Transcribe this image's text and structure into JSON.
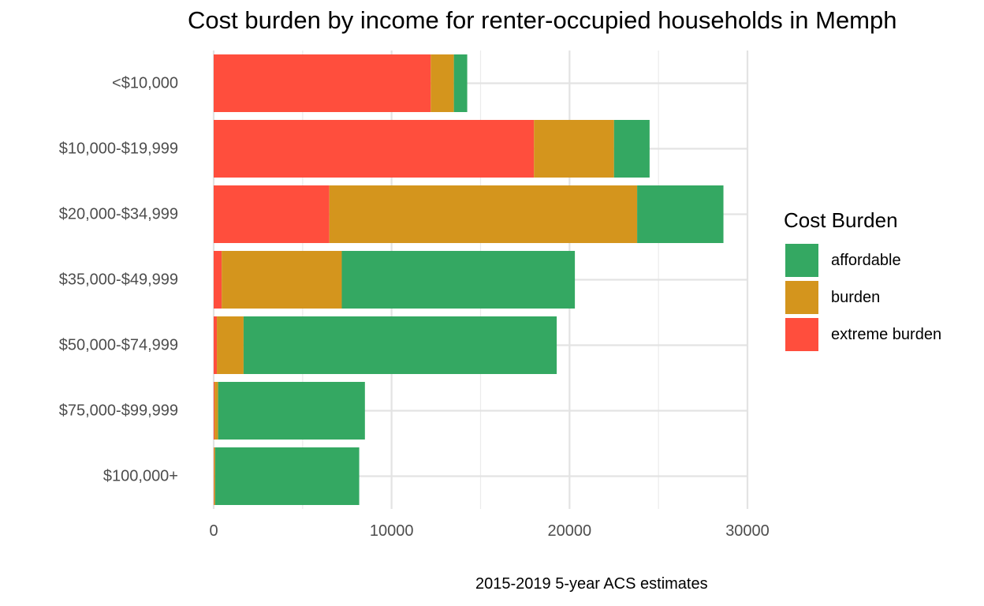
{
  "chart_data": {
    "type": "bar",
    "orientation": "horizontal",
    "stacked": true,
    "title": "Cost burden by income for renter-occupied households in Memph",
    "caption": "2015-2019 5-year ACS estimates",
    "xlabel": "",
    "ylabel": "",
    "xlim": [
      0,
      30000
    ],
    "x_ticks": [
      "0",
      "10000",
      "20000",
      "30000"
    ],
    "categories": [
      "<$10,000",
      "$10,000-$19,999",
      "$20,000-$34,999",
      "$35,000-$49,999",
      "$50,000-$74,999",
      "$75,000-$99,999",
      "$100,000+"
    ],
    "series": [
      {
        "name": "extreme burden",
        "color": "#FF4E3D",
        "values": [
          12200,
          18000,
          6500,
          450,
          180,
          50,
          20
        ]
      },
      {
        "name": "burden",
        "color": "#D4951D",
        "values": [
          1300,
          4500,
          17300,
          6750,
          1500,
          200,
          60
        ]
      },
      {
        "name": "affordable",
        "color": "#34A862",
        "values": [
          750,
          2000,
          4850,
          13100,
          17600,
          8250,
          8100
        ]
      }
    ],
    "legend": {
      "title": "Cost Burden",
      "position": "right",
      "order": [
        "affordable",
        "burden",
        "extreme burden"
      ]
    },
    "grid": true
  }
}
